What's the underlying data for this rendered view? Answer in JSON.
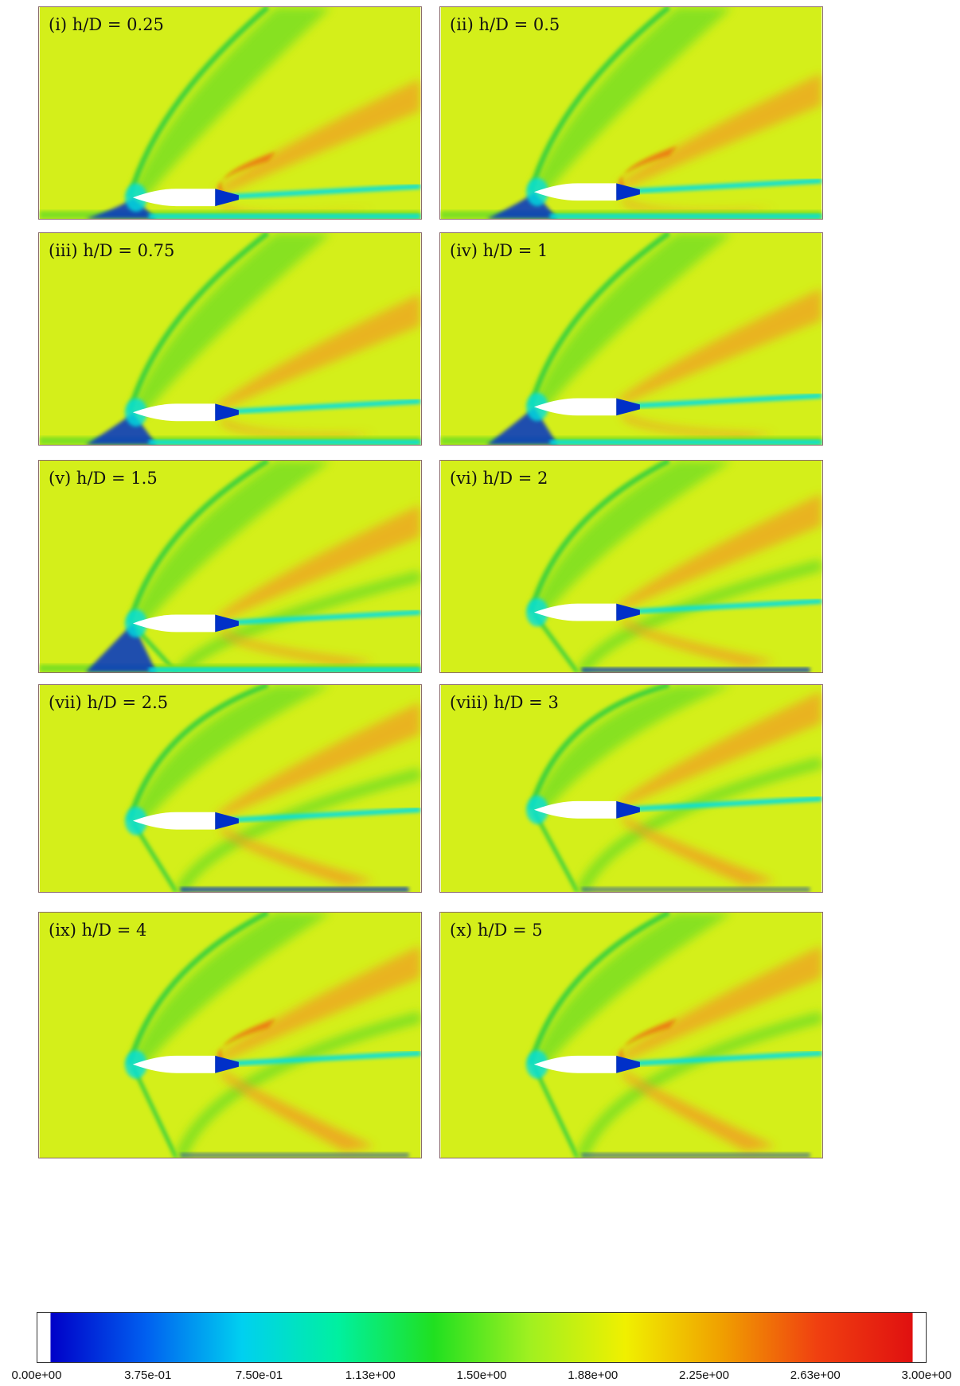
{
  "colors": {
    "background_field": "#d4ef1a",
    "shock_green": "#3fd23a",
    "mid_green": "#7fe020",
    "expansion_blue": "#00e0e0",
    "wake_blue": "#0030c8",
    "compression_orange": "#f0a020",
    "compression_red": "#f06010",
    "body_fill": "#ffffff"
  },
  "panels": [
    {
      "label": "(i) h/D = 0.25",
      "h_over_D": 0.25
    },
    {
      "label": "(ii) h/D = 0.5",
      "h_over_D": 0.5
    },
    {
      "label": "(iii) h/D = 0.75",
      "h_over_D": 0.75
    },
    {
      "label": "(iv) h/D = 1",
      "h_over_D": 1
    },
    {
      "label": "(v) h/D = 1.5",
      "h_over_D": 1.5
    },
    {
      "label": "(vi) h/D = 2",
      "h_over_D": 2
    },
    {
      "label": "(vii) h/D = 2.5",
      "h_over_D": 2.5
    },
    {
      "label": "(viii) h/D = 3",
      "h_over_D": 3
    },
    {
      "label": "(ix) h/D = 4",
      "h_over_D": 4
    },
    {
      "label": "(x) h/D = 5",
      "h_over_D": 5
    }
  ],
  "colorbar": {
    "min": 0,
    "max": 3,
    "ticks": [
      "0.00e+00",
      "3.75e-01",
      "7.50e-01",
      "1.13e+00",
      "1.50e+00",
      "1.88e+00",
      "2.25e+00",
      "2.63e+00",
      "3.00e+00"
    ],
    "stops": [
      "#0000c8",
      "#0060f0",
      "#00d0f0",
      "#00f0a0",
      "#20e020",
      "#a0f020",
      "#f0f000",
      "#f0a000",
      "#f04010",
      "#e01010"
    ]
  }
}
